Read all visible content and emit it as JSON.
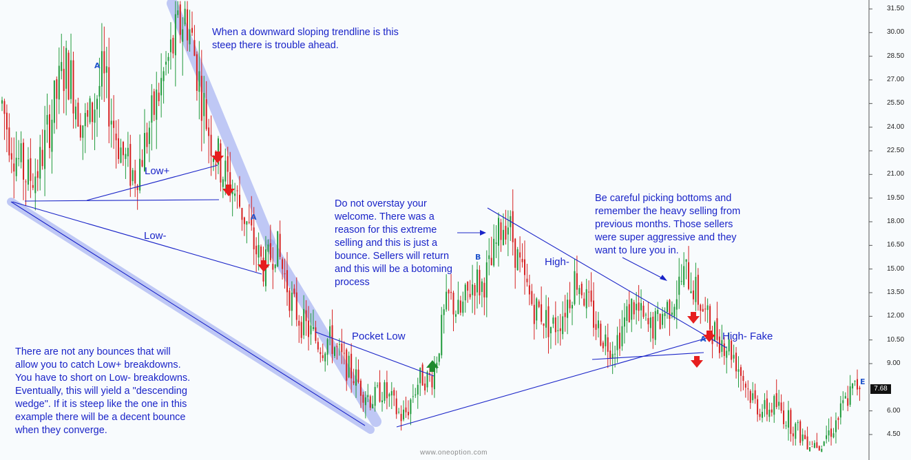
{
  "chart_data": {
    "type": "candlestick",
    "y_ticks": [
      "31.50",
      "30.00",
      "28.50",
      "27.00",
      "25.50",
      "24.00",
      "22.50",
      "21.00",
      "19.50",
      "18.00",
      "16.50",
      "15.00",
      "13.50",
      "12.00",
      "10.50",
      "9.00",
      "7.68",
      "6.00",
      "4.50"
    ],
    "last_price": "7.68",
    "ylim": [
      3.8,
      32.0
    ],
    "grid": false,
    "colors": {
      "up": "#1f9a3a",
      "down": "#d62020",
      "lines": "#1a24c8",
      "highlight": "#9aa6f0",
      "arrow_down": "#e61e1e",
      "arrow_up": "#1f8a2e"
    },
    "trend_values": [
      25.5,
      24.0,
      22.8,
      22.0,
      21.2,
      20.8,
      21.0,
      21.4,
      22.8,
      24.2,
      25.5,
      26.8,
      27.8,
      27.2,
      25.8,
      24.6,
      24.0,
      24.8,
      26.0,
      27.2,
      26.0,
      24.4,
      23.2,
      22.2,
      21.4,
      21.0,
      21.6,
      22.8,
      24.0,
      25.2,
      26.4,
      27.6,
      28.6,
      29.6,
      30.6,
      31.2,
      29.6,
      27.8,
      26.0,
      24.2,
      23.0,
      22.0,
      21.2,
      20.6,
      20.0,
      19.2,
      18.4,
      17.4,
      16.4,
      15.6,
      15.0,
      15.8,
      16.6,
      15.4,
      14.2,
      13.0,
      12.2,
      11.6,
      11.2,
      10.8,
      10.4,
      10.1,
      10.6,
      10.2,
      9.6,
      9.0,
      8.6,
      8.2,
      7.6,
      7.2,
      6.8,
      6.8,
      7.4,
      7.0,
      6.6,
      6.0,
      5.6,
      6.0,
      7.0,
      7.8,
      8.2,
      8.0,
      8.4,
      10.2,
      12.0,
      13.2,
      12.6,
      12.0,
      13.0,
      13.8,
      14.4,
      13.8,
      14.6,
      15.2,
      16.6,
      17.8,
      18.2,
      17.0,
      15.6,
      14.4,
      13.4,
      12.6,
      12.4,
      12.0,
      11.4,
      11.4,
      11.8,
      12.6,
      13.4,
      14.6,
      14.0,
      13.0,
      12.2,
      11.4,
      10.8,
      10.4,
      10.2,
      10.6,
      11.4,
      12.2,
      12.8,
      12.2,
      11.6,
      11.2,
      11.4,
      11.8,
      12.4,
      12.8,
      13.4,
      14.2,
      14.8,
      14.2,
      13.4,
      12.6,
      11.8,
      11.2,
      10.8,
      10.4,
      10.2,
      9.6,
      8.8,
      8.0,
      7.2,
      6.6,
      6.2,
      6.0,
      6.2,
      6.4,
      6.0,
      5.6,
      5.2,
      4.8,
      4.4,
      4.2,
      4.0,
      4.0,
      4.2,
      4.6,
      5.0,
      5.6,
      6.4,
      7.0,
      7.4,
      7.8
    ]
  },
  "annotations": {
    "steep_trendline": "When a downward sloping trendline is this\nsteep there is trouble ahead.",
    "overstay": "Do not overstay your\nwelcome. There was a\nreason for this extreme\nselling and this is just a\nbounce. Sellers will return\nand this will be a botoming\nprocess",
    "careful_bottoms": "Be careful picking bottoms and\nremember the heavy selling from\nprevious months. Those sellers\nwere super aggressive and they\nwant to lure you in.",
    "no_bounces": "There are not any bounces that will\nallow you to catch Low+ breakdowns.\nYou have to short on Low- breakdowns.\nEventually, this will yield a \"descending\nwedge\". If it is steep like the one in this\nexample there will be a decent bounce\nwhen they converge."
  },
  "labels": {
    "low_plus": "Low+",
    "low_minus": "Low-",
    "pocket_low": "Pocket Low",
    "high_minus": "High-",
    "high_minus_fake": "High- Fake"
  },
  "pattern_letters": {
    "a1": "A",
    "a2": "A",
    "b": "B",
    "a3": "A",
    "e": "E"
  },
  "watermark": "www.oneoption.com"
}
